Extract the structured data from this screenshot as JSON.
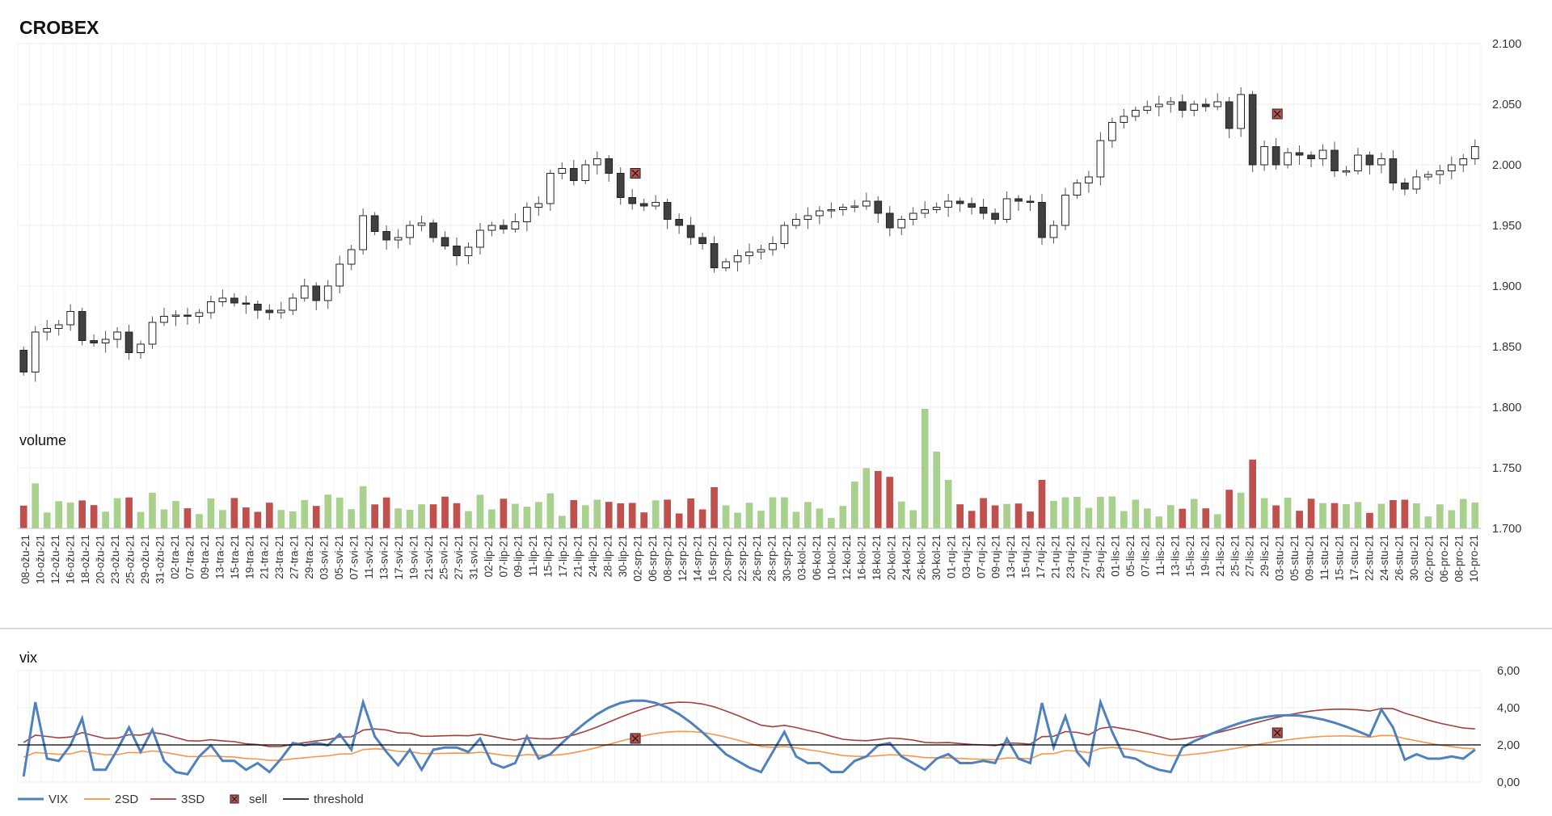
{
  "chart_data": [
    {
      "type": "candlestick",
      "title": "CROBEX",
      "ylim": [
        1700,
        2100
      ],
      "yticks": [
        "1.700",
        "1.750",
        "1.800",
        "1.850",
        "1.900",
        "1.950",
        "2.000",
        "2.050",
        "2.100"
      ],
      "grid": true,
      "x_labels": [
        "08-ožu-21",
        "10-ožu-21",
        "12-ožu-21",
        "16-ožu-21",
        "18-ožu-21",
        "20-ožu-21",
        "23-ožu-21",
        "25-ožu-21",
        "29-ožu-21",
        "31-ožu-21",
        "02-tra-21",
        "07-tra-21",
        "09-tra-21",
        "13-tra-21",
        "15-tra-21",
        "19-tra-21",
        "21-tra-21",
        "23-tra-21",
        "27-tra-21",
        "29-tra-21",
        "03-svi-21",
        "05-svi-21",
        "07-svi-21",
        "11-svi-21",
        "13-svi-21",
        "17-svi-21",
        "19-svi-21",
        "21-svi-21",
        "25-svi-21",
        "27-svi-21",
        "31-svi-21",
        "02-lip-21",
        "07-lip-21",
        "09-lip-21",
        "11-lip-21",
        "15-lip-21",
        "17-lip-21",
        "21-lip-21",
        "24-lip-21",
        "28-lip-21",
        "30-lip-21",
        "02-srp-21",
        "06-srp-21",
        "08-srp-21",
        "12-srp-21",
        "14-srp-21",
        "16-srp-21",
        "20-srp-21",
        "22-srp-21",
        "26-srp-21",
        "28-srp-21",
        "30-srp-21",
        "03-kol-21",
        "06-kol-21",
        "10-kol-21",
        "12-kol-21",
        "16-kol-21",
        "18-kol-21",
        "20-kol-21",
        "24-kol-21",
        "26-kol-21",
        "30-kol-21",
        "01-ruj-21",
        "03-ruj-21",
        "07-ruj-21",
        "09-ruj-21",
        "13-ruj-21",
        "15-ruj-21",
        "17-ruj-21",
        "21-ruj-21",
        "23-ruj-21",
        "27-ruj-21",
        "29-ruj-21",
        "01-lis-21",
        "05-lis-21",
        "07-lis-21",
        "11-lis-21",
        "13-lis-21",
        "15-lis-21",
        "19-lis-21",
        "21-lis-21",
        "25-lis-21",
        "27-lis-21",
        "29-lis-21",
        "03-stu-21",
        "05-stu-21",
        "09-stu-21",
        "11-stu-21",
        "15-stu-21",
        "17-stu-21",
        "22-stu-21",
        "24-stu-21",
        "26-stu-21",
        "30-stu-21",
        "02-pro-21",
        "06-pro-21",
        "08-pro-21",
        "10-pro-21"
      ],
      "close": [
        1829,
        1862,
        1865,
        1868,
        1879,
        1855,
        1853,
        1856,
        1862,
        1845,
        1852,
        1870,
        1875,
        1876,
        1875,
        1878,
        1887,
        1890,
        1886,
        1885,
        1880,
        1878,
        1880,
        1890,
        1900,
        1888,
        1900,
        1918,
        1930,
        1958,
        1945,
        1938,
        1940,
        1950,
        1952,
        1940,
        1933,
        1925,
        1932,
        1946,
        1950,
        1947,
        1953,
        1965,
        1968,
        1993,
        1997,
        1987,
        2000,
        2005,
        1993,
        1973,
        1968,
        1966,
        1969,
        1955,
        1950,
        1940,
        1935,
        1915,
        1920,
        1925,
        1928,
        1930,
        1935,
        1950,
        1955,
        1958,
        1962,
        1963,
        1965,
        1966,
        1970,
        1960,
        1948,
        1955,
        1960,
        1963,
        1965,
        1970,
        1968,
        1965,
        1960,
        1955,
        1972,
        1970,
        1969,
        1940,
        1950,
        1975,
        1985,
        1990,
        2020,
        2035,
        2040,
        2045,
        2048,
        2050,
        2052,
        2045,
        2050,
        2048,
        2052,
        2030,
        2058,
        2000,
        2015,
        2000,
        2010,
        2008,
        2005,
        2012,
        1995,
        1995,
        2008,
        2000,
        2005,
        1985,
        1980,
        1990,
        1992,
        1995,
        2000,
        2005,
        2015
      ],
      "series_price_range": [
        1829,
        2058
      ],
      "markers": [
        {
          "name": "sell",
          "x": "30-lip-21",
          "y": 1993
        },
        {
          "name": "sell",
          "x": "29-lis-21",
          "y": 2042
        }
      ]
    },
    {
      "type": "bar",
      "title": "volume",
      "note_axis": "shares the price axis region",
      "colors": {
        "up": "#a9d18e",
        "down": "#c0504d"
      }
    },
    {
      "type": "line",
      "title": "vix",
      "ylim": [
        0,
        6
      ],
      "yticks": [
        "0,00",
        "2,00",
        "4,00",
        "6,00"
      ],
      "threshold": 2.0,
      "series": [
        {
          "name": "VIX",
          "color": "#4f81bd"
        },
        {
          "name": "2SD",
          "color": "#f79646"
        },
        {
          "name": "3SD",
          "color": "#a0413f"
        },
        {
          "name": "sell",
          "color": "#c0504d"
        },
        {
          "name": "threshold",
          "color": "#000000"
        }
      ],
      "markers": [
        {
          "name": "sell",
          "x": "30-lip-21",
          "y": 2.35
        },
        {
          "name": "sell",
          "x": "29-lis-21",
          "y": 2.65
        }
      ]
    }
  ]
}
